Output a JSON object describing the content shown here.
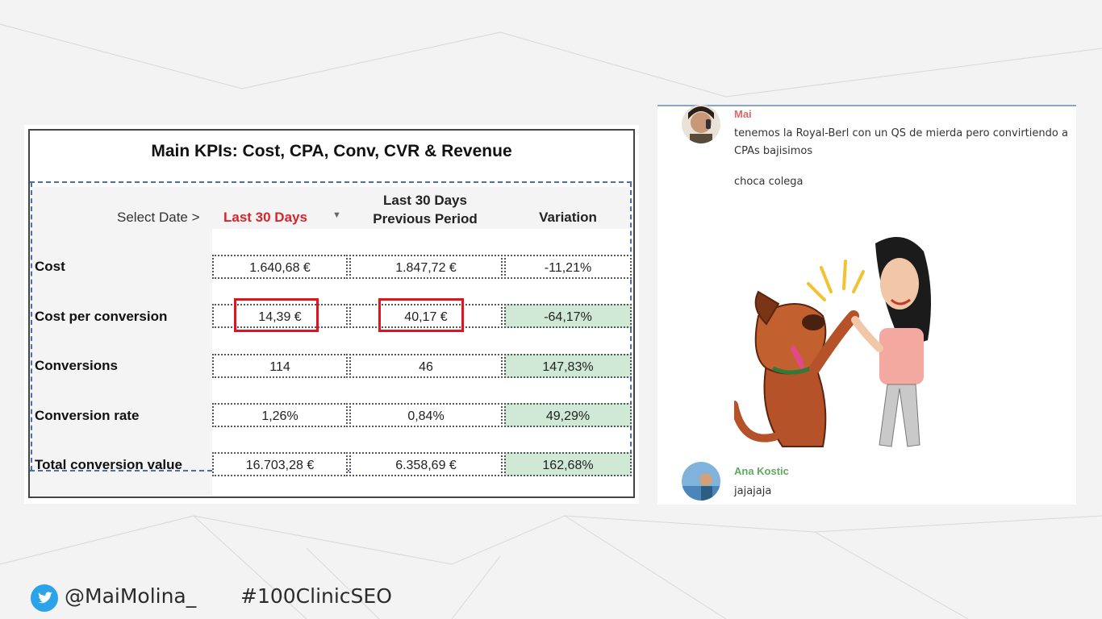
{
  "kpi": {
    "title": "Main KPIs: Cost, CPA, Conv, CVR & Revenue",
    "select_label": "Select Date >",
    "select_value": "Last 30 Days",
    "col_prev_line1": "Last 30 Days",
    "col_prev_line2": "Previous Period",
    "col_variation": "Variation",
    "rows": [
      {
        "label": "Cost",
        "current": "1.640,68 €",
        "previous": "1.847,72 €",
        "variation": "-11,21%"
      },
      {
        "label": "Cost per conversion",
        "current": "14,39 €",
        "previous": "40,17 €",
        "variation": "-64,17%"
      },
      {
        "label": "Conversions",
        "current": "114",
        "previous": "46",
        "variation": "147,83%"
      },
      {
        "label": "Conversion rate",
        "current": "1,26%",
        "previous": "0,84%",
        "variation": "49,29%"
      },
      {
        "label": "Total conversion value",
        "current": "16.703,28 €",
        "previous": "6.358,69 €",
        "variation": "162,68%"
      }
    ],
    "colors": {
      "accent_red": "#d9232b",
      "positive_green": "#cfe9d6",
      "highlight_red": "#e0141e"
    }
  },
  "chat": {
    "messages": [
      {
        "user": "Mai",
        "user_color": "#d86a6a",
        "lines": [
          "tenemos la Royal-Berl con un QS de mierda pero convirtiendo a",
          "CPAs bajisimos"
        ],
        "followup": "choca colega"
      },
      {
        "user": "Ana Kostic",
        "user_color": "#5fa85f",
        "text": "jajajaja"
      }
    ]
  },
  "footer": {
    "twitter_icon": "twitter-bird-icon",
    "handle": "@MaiMolina_",
    "hashtag": "#100ClinicSEO"
  }
}
